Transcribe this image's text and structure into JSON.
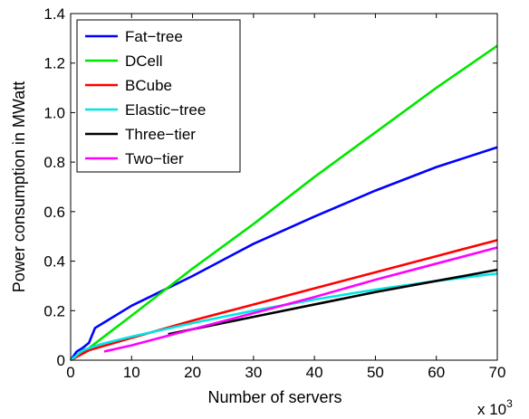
{
  "chart_data": {
    "type": "line",
    "xlabel": "Number of servers",
    "ylabel": "Power consumption in MWatt",
    "x_multiplier": {
      "base": "x 10",
      "exponent": "3"
    },
    "xlim": [
      0,
      70
    ],
    "ylim": [
      0,
      1.4
    ],
    "x_ticks": [
      0,
      10,
      20,
      30,
      40,
      50,
      60,
      70
    ],
    "y_ticks": [
      0,
      0.2,
      0.4,
      0.6,
      0.8,
      1.0,
      1.2,
      1.4
    ],
    "x_tick_labels": [
      "0",
      "10",
      "20",
      "30",
      "40",
      "50",
      "60",
      "70"
    ],
    "y_tick_labels": [
      "0",
      "0.2",
      "0.4",
      "0.6",
      "0.8",
      "1.0",
      "1.2",
      "1.4"
    ],
    "grid": false,
    "legend_position": "top-left",
    "series": [
      {
        "name": "Fat−tree",
        "color": "#0000ff",
        "x": [
          0,
          1,
          2,
          3,
          4,
          6,
          10,
          15,
          20,
          30,
          40,
          50,
          60,
          70
        ],
        "y": [
          0,
          0.035,
          0.05,
          0.07,
          0.13,
          0.16,
          0.22,
          0.28,
          0.34,
          0.47,
          0.58,
          0.685,
          0.78,
          0.86
        ]
      },
      {
        "name": "DCell",
        "color": "#00e600",
        "x": [
          0,
          2,
          10,
          20,
          30,
          40,
          50,
          60,
          70
        ],
        "y": [
          0,
          0.03,
          0.18,
          0.37,
          0.55,
          0.74,
          0.92,
          1.1,
          1.27
        ]
      },
      {
        "name": "BCube",
        "color": "#ff0000",
        "x": [
          0,
          3,
          10,
          20,
          30,
          40,
          50,
          60,
          70
        ],
        "y": [
          0,
          0.04,
          0.09,
          0.16,
          0.225,
          0.29,
          0.355,
          0.42,
          0.485
        ]
      },
      {
        "name": "Elastic−tree",
        "color": "#00e6e6",
        "x": [
          0,
          2,
          5,
          10,
          20,
          30,
          40,
          50,
          60,
          70
        ],
        "y": [
          0,
          0.04,
          0.065,
          0.095,
          0.15,
          0.2,
          0.245,
          0.285,
          0.32,
          0.35
        ]
      },
      {
        "name": "Three−tier",
        "color": "#000000",
        "x": [
          16,
          20,
          30,
          40,
          50,
          60,
          70
        ],
        "y": [
          0.105,
          0.125,
          0.175,
          0.225,
          0.275,
          0.32,
          0.365
        ]
      },
      {
        "name": "Two−tier",
        "color": "#ff00ff",
        "x": [
          5.5,
          10,
          20,
          30,
          40,
          50,
          60,
          70
        ],
        "y": [
          0.035,
          0.06,
          0.125,
          0.19,
          0.255,
          0.325,
          0.39,
          0.455
        ]
      }
    ]
  }
}
